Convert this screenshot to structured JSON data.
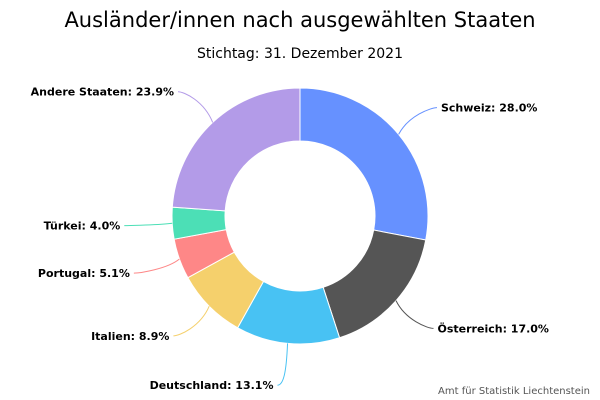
{
  "chart_data": {
    "type": "pie",
    "variant": "donut",
    "title": "Ausländer/innen nach ausgewählten Staaten",
    "subtitle": "Stichtag: 31. Dezember 2021",
    "unit": "%",
    "slices": [
      {
        "label": "Schweiz: 28.0%",
        "category": "Schweiz",
        "value": 28.0,
        "color": "#6691ff"
      },
      {
        "label": "Österreich: 17.0%",
        "category": "Österreich",
        "value": 17.0,
        "color": "#555555"
      },
      {
        "label": "Deutschland: 13.1%",
        "category": "Deutschland",
        "value": 13.1,
        "color": "#48c2f3"
      },
      {
        "label": "Italien: 8.9%",
        "category": "Italien",
        "value": 8.9,
        "color": "#f5d06c"
      },
      {
        "label": "Portugal: 5.1%",
        "category": "Portugal",
        "value": 5.1,
        "color": "#fe8787"
      },
      {
        "label": "Türkei: 4.0%",
        "category": "Türkei",
        "value": 4.0,
        "color": "#4cdfb6"
      },
      {
        "label": "Andere Staaten: 23.9%",
        "category": "Andere Staaten",
        "value": 23.9,
        "color": "#b39be8"
      }
    ],
    "start_position": "top",
    "direction": "clockwise",
    "legend": "none",
    "credits": "Amt für Statistik Liechtenstein"
  }
}
